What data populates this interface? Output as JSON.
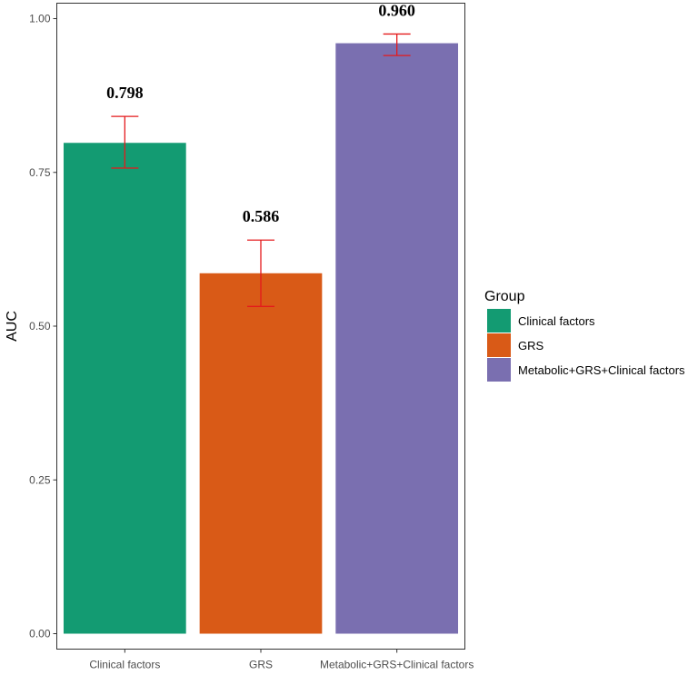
{
  "chart_data": {
    "type": "bar",
    "categories": [
      "Clinical factors",
      "GRS",
      "Metabolic+GRS+Clinical factors"
    ],
    "values": [
      0.798,
      0.586,
      0.96
    ],
    "data_labels": [
      "0.798",
      "0.586",
      "0.960"
    ],
    "error_bars": [
      {
        "lower": 0.757,
        "upper": 0.841
      },
      {
        "lower": 0.532,
        "upper": 0.64
      },
      {
        "lower": 0.94,
        "upper": 0.975
      }
    ],
    "colors": [
      "#139B72",
      "#D95A17",
      "#7A6FB0"
    ],
    "error_bar_color": "#E41A1C",
    "ylabel": "AUC",
    "xlabel": "",
    "ylim": [
      0,
      1.02
    ],
    "yticks": [
      0.0,
      0.25,
      0.5,
      0.75,
      1.0
    ],
    "ytick_labels": [
      "0.00",
      "0.25",
      "0.50",
      "0.75",
      "1.00"
    ],
    "grid": false,
    "legend": {
      "title": "Group",
      "placement": "right",
      "entries": [
        "Clinical factors",
        "GRS",
        "Metabolic+GRS+Clinical factors"
      ]
    }
  }
}
